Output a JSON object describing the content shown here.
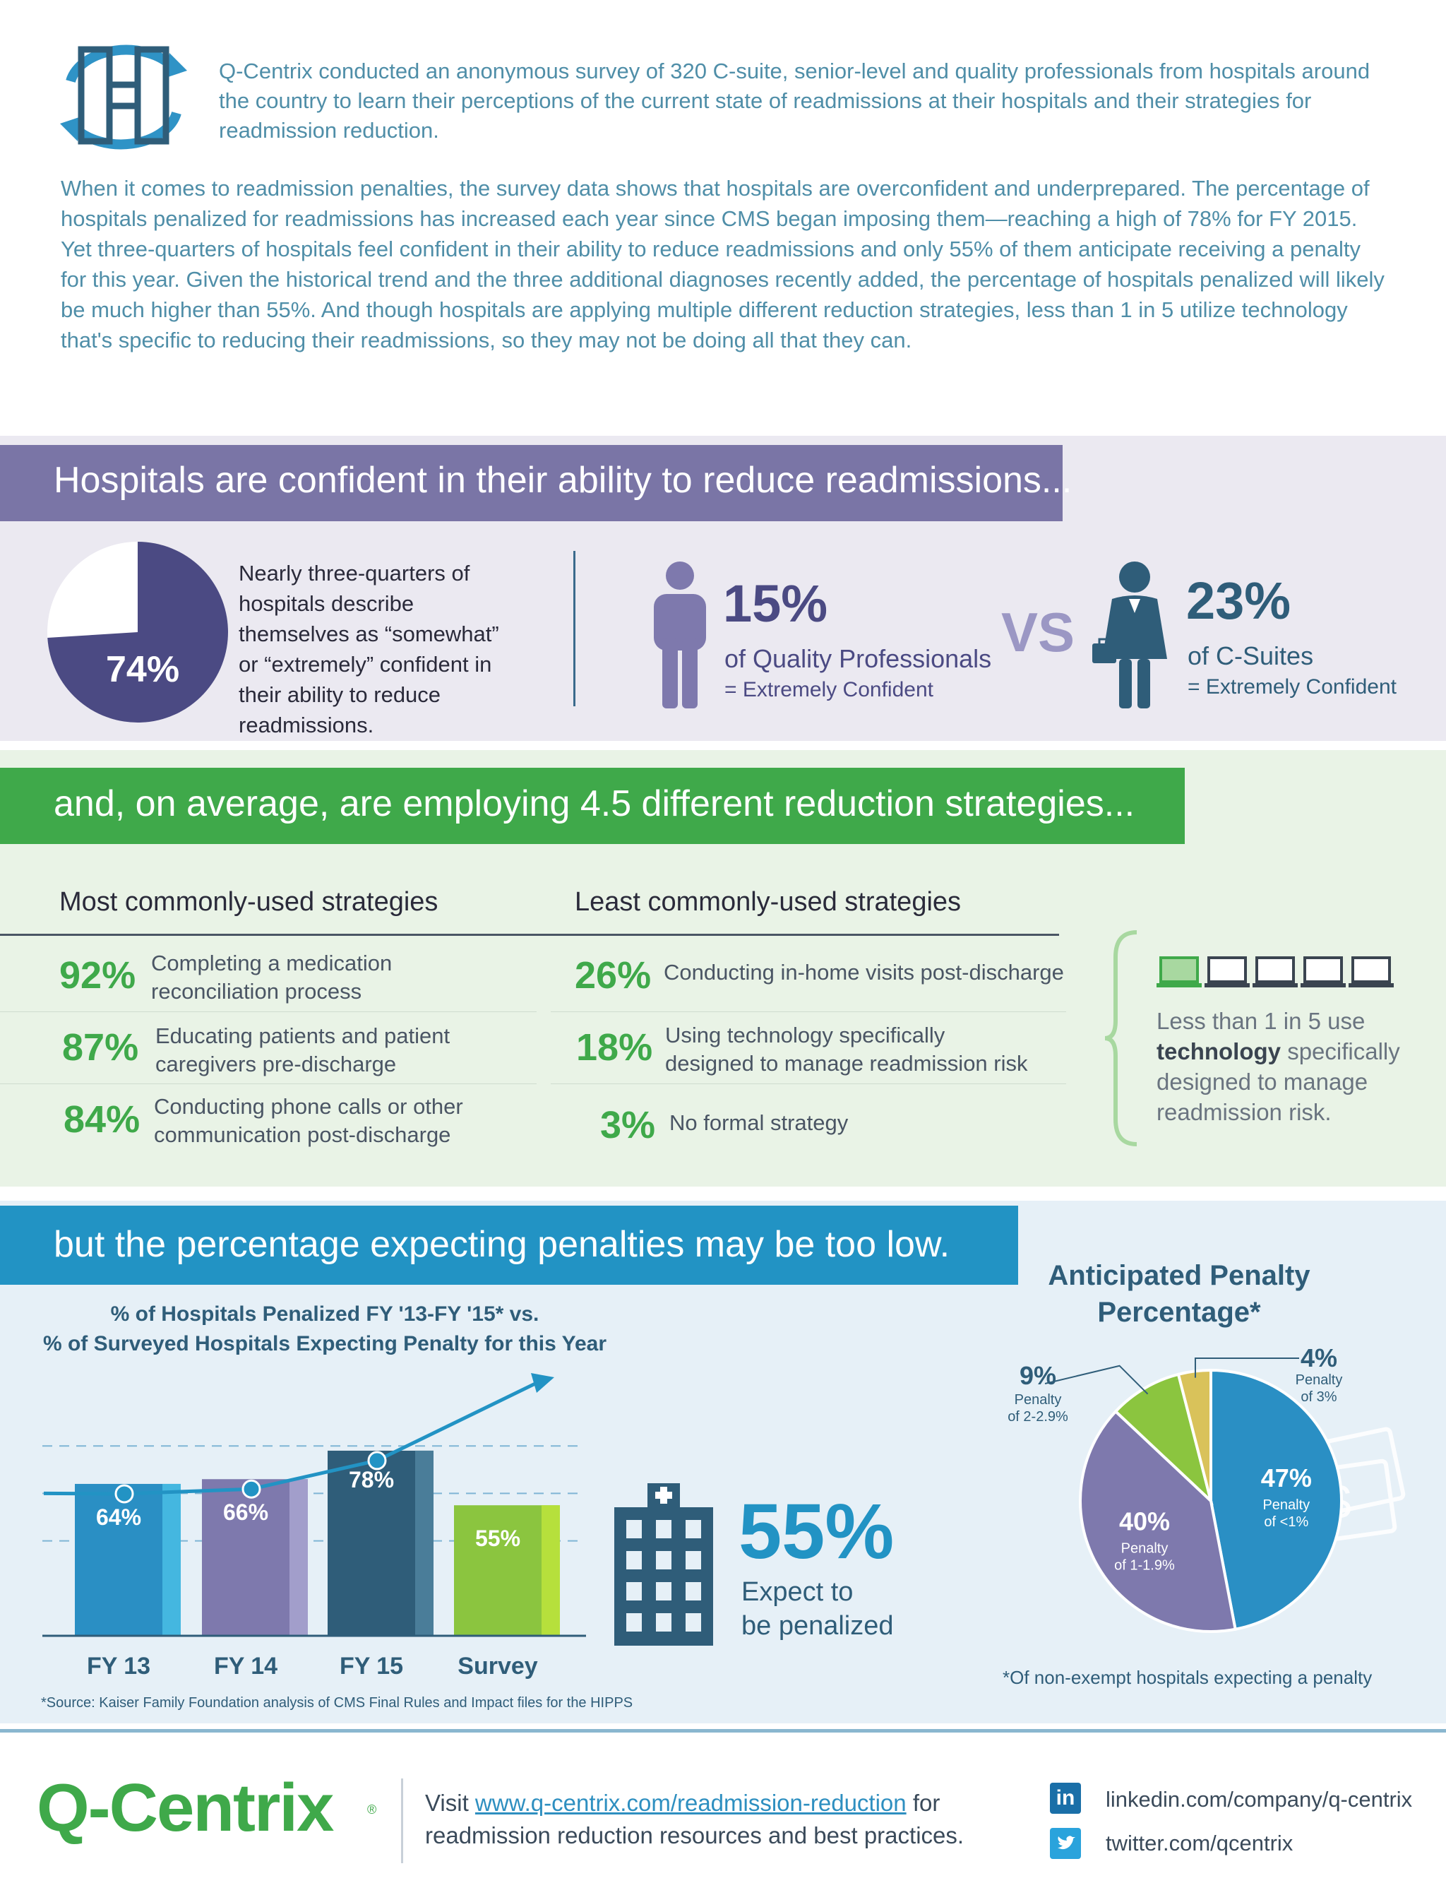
{
  "intro": {
    "paragraph1": "Q-Centrix conducted an anonymous survey of 320 C-suite, senior-level and quality professionals from hospitals around the country to learn their perceptions of the current state of readmissions at their hospitals and their strategies for readmission reduction.",
    "paragraph2": "When it comes to readmission penalties, the survey data shows that hospitals are overconfident and underprepared. The percentage of hospitals penalized for readmissions has increased each year since CMS began imposing them—reaching a high of 78% for FY 2015. Yet three-quarters of hospitals feel confident in their ability to reduce readmissions and only 55% of them anticipate receiving a penalty for this year. Given the historical trend and the three additional diagnoses recently added, the percentage of hospitals penalized will likely be much higher than 55%. And though hospitals are applying multiple different reduction strategies, less than 1 in 5 utilize technology that's specific to reducing their readmissions, so they may not be doing all that they can."
  },
  "section1": {
    "header": "Hospitals are confident in their ability to reduce readmissions...",
    "pie_value": 74,
    "pie_label": "74%",
    "pie_text": "Nearly three-quarters of hospitals describe themselves as “somewhat” or “extremely” confident in their ability to reduce readmissions.",
    "quality_pct": "15%",
    "quality_label": "of Quality Professionals",
    "quality_sub": "= Extremely Confident",
    "vs": "VS",
    "csuite_pct": "23%",
    "csuite_label": "of C-Suites",
    "csuite_sub": "= Extremely Confident"
  },
  "section2": {
    "header": "and, on average, are employing 4.5 different reduction strategies...",
    "most_title": "Most commonly-used strategies",
    "least_title": "Least commonly-used strategies",
    "most": [
      {
        "pct": "92%",
        "text": "Completing a medication reconciliation process"
      },
      {
        "pct": "87%",
        "text": "Educating patients and patient caregivers pre-discharge"
      },
      {
        "pct": "84%",
        "text": "Conducting phone calls or other communication post-discharge"
      }
    ],
    "least": [
      {
        "pct": "26%",
        "text": "Conducting in-home visits post-discharge"
      },
      {
        "pct": "18%",
        "text": "Using technology specifically designed to manage readmission risk"
      },
      {
        "pct": "3%",
        "text": "No formal strategy"
      }
    ],
    "tech_pre": "Less than 1 in 5 use",
    "tech_bold": "technology",
    "tech_post": "specifically designed to manage readmission risk.",
    "laptops_highlighted": 1,
    "laptops_total": 5
  },
  "section3": {
    "header": "but the percentage expecting penalties may be too low.",
    "bar_title_1": "% of Hospitals Penalized FY '13-FY '15* vs.",
    "bar_title_2": "% of Surveyed Hospitals Expecting Penalty for this Year",
    "source": "*Source: Kaiser Family Foundation analysis of CMS Final Rules and Impact files for the HIPPS",
    "expect_pct": "55%",
    "expect_line1": "Expect to",
    "expect_line2": "be penalized",
    "pie_title_1": "Anticipated Penalty",
    "pie_title_2": "Percentage*",
    "pie_note": "*Of non-exempt hospitals expecting a penalty"
  },
  "chart_data": [
    {
      "type": "bar",
      "title": "% of Hospitals Penalized FY '13-FY '15* vs. % of Surveyed Hospitals Expecting Penalty for this Year",
      "categories": [
        "FY 13",
        "FY 14",
        "FY 15",
        "Survey"
      ],
      "values": [
        64,
        66,
        78,
        55
      ],
      "labels": [
        "64%",
        "66%",
        "78%",
        "55%"
      ],
      "colors": [
        "#2a8fc4",
        "#7e79ad",
        "#2f5d79",
        "#8bc53f"
      ],
      "ylim": [
        0,
        100
      ]
    },
    {
      "type": "pie",
      "title": "Anticipated Penalty Percentage*",
      "slices": [
        {
          "value": 47,
          "pct": "47%",
          "label1": "Penalty",
          "label2": "of <1%",
          "color": "#2a8fc4"
        },
        {
          "value": 40,
          "pct": "40%",
          "label1": "Penalty",
          "label2": "of 1-1.9%",
          "color": "#7e79ad"
        },
        {
          "value": 9,
          "pct": "9%",
          "label1": "Penalty",
          "label2": "of 2-2.9%",
          "color": "#8bc53f"
        },
        {
          "value": 4,
          "pct": "4%",
          "label1": "Penalty",
          "label2": "of 3%",
          "color": "#d9c25a"
        }
      ]
    }
  ],
  "footer": {
    "brand": "Q-Centrix",
    "visit_pre": "Visit",
    "visit_link": "www.q-centrix.com/readmission-reduction",
    "visit_post": "for",
    "visit_line2": "readmission reduction resources and best practices.",
    "linkedin": "linkedin.com/company/q-centrix",
    "twitter": "twitter.com/qcentrix"
  }
}
